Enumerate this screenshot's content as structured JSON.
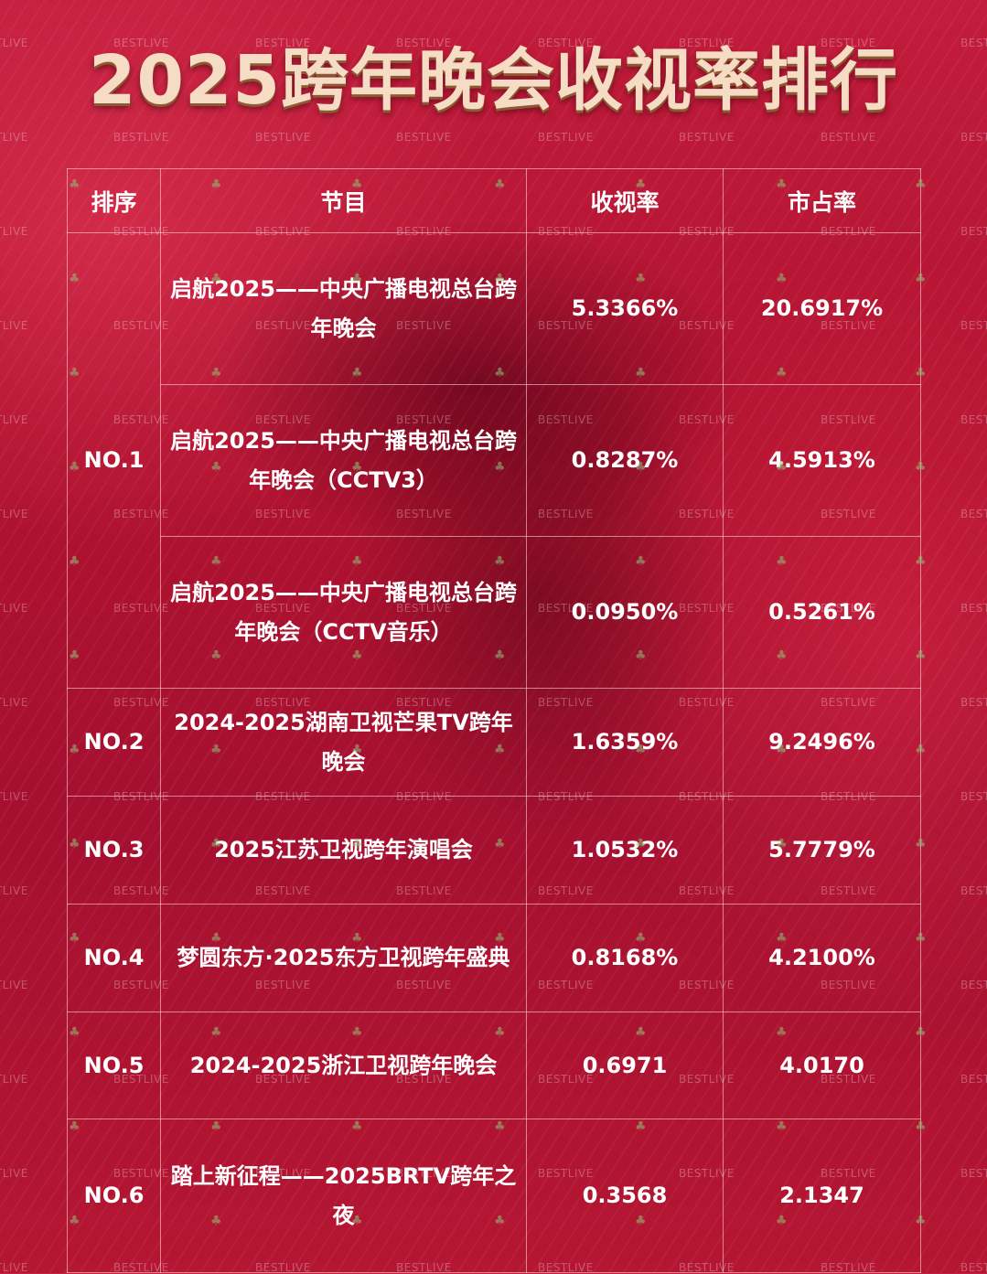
{
  "title": "2025跨年晚会收视率排行",
  "watermark": "BESTLIVE",
  "table": {
    "headers": [
      "排序",
      "节目",
      "收视率",
      "市占率"
    ],
    "groups": [
      {
        "rank": "NO.1",
        "rows": [
          {
            "program": "启航2025——中央广播电视总台跨年晚会",
            "rating": "5.3366%",
            "share": "20.6917%"
          },
          {
            "program": "启航2025——中央广播电视总台跨年晚会（CCTV3）",
            "rating": "0.8287%",
            "share": "4.5913%"
          },
          {
            "program": "启航2025——中央广播电视总台跨年晚会（CCTV音乐）",
            "rating": "0.0950%",
            "share": "0.5261%"
          }
        ]
      },
      {
        "rank": "NO.2",
        "rows": [
          {
            "program": "2024-2025湖南卫视芒果TV跨年晚会",
            "rating": "1.6359%",
            "share": "9.2496%"
          }
        ]
      },
      {
        "rank": "NO.3",
        "rows": [
          {
            "program": "2025江苏卫视跨年演唱会",
            "rating": "1.0532%",
            "share": "5.7779%"
          }
        ]
      },
      {
        "rank": "NO.4",
        "rows": [
          {
            "program": "梦圆东方·2025东方卫视跨年盛典",
            "rating": "0.8168%",
            "share": "4.2100%"
          }
        ]
      },
      {
        "rank": "NO.5",
        "rows": [
          {
            "program": "2024-2025浙江卫视跨年晚会",
            "rating": "0.6971",
            "share": "4.0170"
          }
        ]
      },
      {
        "rank": "NO.6",
        "rows": [
          {
            "program": "踏上新征程——2025BRTV跨年之夜",
            "rating": "0.3568",
            "share": "2.1347"
          }
        ]
      }
    ]
  }
}
